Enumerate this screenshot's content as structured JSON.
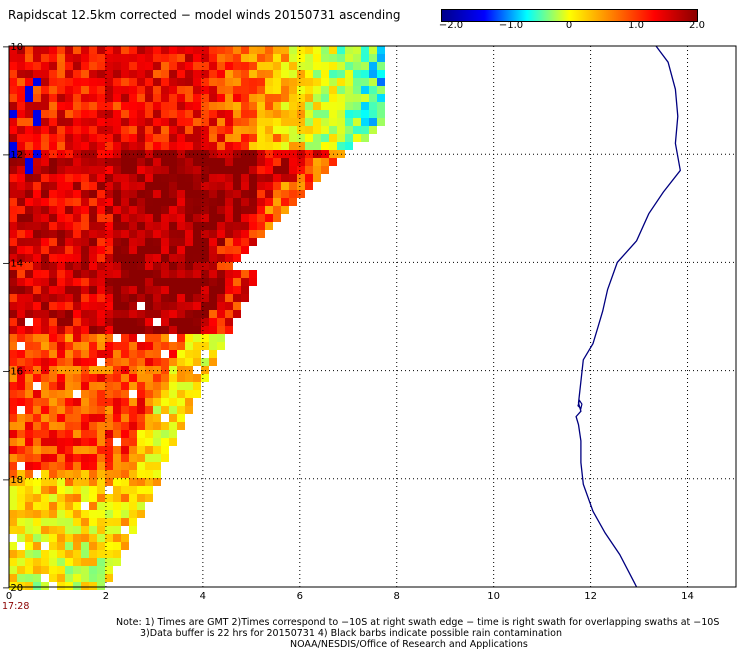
{
  "title": "Rapidscat 12.5km corrected − model winds 20150731 ascending",
  "colorbar": {
    "labels": [
      "−2.0",
      "−1.0",
      "0",
      "1.0",
      "2.0"
    ],
    "values": [
      -2.0,
      -1.0,
      0.0,
      1.0,
      2.0
    ],
    "range": [
      -2.0,
      2.0
    ],
    "colors": [
      "#00008b",
      "#0000ff",
      "#00ffff",
      "#ffff00",
      "#ff8000",
      "#ff0000",
      "#8b0000"
    ]
  },
  "map": {
    "lon_range": [
      0,
      15
    ],
    "lat_range": [
      -20,
      -10
    ],
    "x_ticks": [
      {
        "value": 0,
        "label": "0"
      },
      {
        "value": 2,
        "label": "2"
      },
      {
        "value": 4,
        "label": "4"
      },
      {
        "value": 6,
        "label": "6"
      },
      {
        "value": 8,
        "label": "8"
      },
      {
        "value": 10,
        "label": "10"
      },
      {
        "value": 12,
        "label": "12"
      },
      {
        "value": 14,
        "label": "14"
      }
    ],
    "y_ticks": [
      {
        "value": -10,
        "label": "−10"
      },
      {
        "value": -12,
        "label": "−12"
      },
      {
        "value": -14,
        "label": "−14"
      },
      {
        "value": -16,
        "label": "−16"
      },
      {
        "value": -18,
        "label": "−18"
      },
      {
        "value": -20,
        "label": "−20"
      }
    ],
    "grid": "dotted",
    "swath_time": "17:28",
    "coastline_color": "#000080",
    "coastline": [
      [
        13.35,
        -10.0
      ],
      [
        13.6,
        -10.3
      ],
      [
        13.75,
        -10.8
      ],
      [
        13.8,
        -11.3
      ],
      [
        13.75,
        -11.8
      ],
      [
        13.85,
        -12.3
      ],
      [
        13.5,
        -12.7
      ],
      [
        13.2,
        -13.1
      ],
      [
        12.95,
        -13.6
      ],
      [
        12.55,
        -14.0
      ],
      [
        12.35,
        -14.5
      ],
      [
        12.25,
        -14.9
      ],
      [
        12.15,
        -15.2
      ],
      [
        12.05,
        -15.5
      ],
      [
        11.85,
        -15.8
      ],
      [
        11.8,
        -16.2
      ],
      [
        11.75,
        -16.6
      ],
      [
        11.8,
        -16.75
      ],
      [
        11.7,
        -16.85
      ],
      [
        11.75,
        -17.0
      ],
      [
        11.8,
        -17.3
      ],
      [
        11.8,
        -17.7
      ],
      [
        11.85,
        -18.1
      ],
      [
        12.05,
        -18.6
      ],
      [
        12.3,
        -19.0
      ],
      [
        12.6,
        -19.4
      ],
      [
        12.95,
        -20.0
      ]
    ],
    "island": [
      [
        11.77,
        -16.55
      ],
      [
        11.82,
        -16.62
      ],
      [
        11.8,
        -16.7
      ],
      [
        11.74,
        -16.65
      ],
      [
        11.77,
        -16.55
      ]
    ]
  },
  "notes": [
    "Note: 1) Times are GMT 2)Times correspond to −10S at right swath edge − time is right swath for overlapping swaths at −10S",
    "3)Data buffer is 22 hrs for 20150731 4) Black barbs indicate possible rain contamination",
    "NOAA/NESDIS/Office of Research and Applications"
  ]
}
